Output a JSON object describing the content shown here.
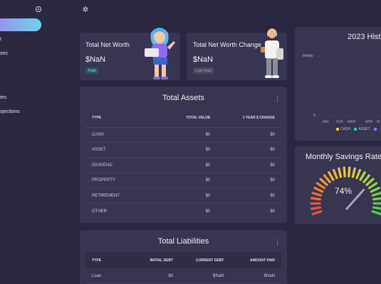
{
  "sidebar": {
    "items": [
      {
        "label": "t"
      },
      {
        "label": "ses"
      },
      {
        "label": "ies"
      },
      {
        "label": "ojections"
      }
    ]
  },
  "net_worth": {
    "title": "Total Net Worth",
    "value": "$NaN",
    "badge": "Total"
  },
  "net_worth_change": {
    "title": "Total Net Worth Change",
    "value": "$NaN",
    "badge": "Last Year"
  },
  "assets": {
    "title": "Total Assets",
    "columns": [
      "TYPE",
      "TOTAL VALUE",
      "1 YEAR $ CHANGE"
    ],
    "rows": [
      {
        "type": "CASH",
        "total": "$0",
        "change": "$0"
      },
      {
        "type": "ASSET",
        "total": "$0",
        "change": "$0"
      },
      {
        "type": "DIVIDEND",
        "total": "$0",
        "change": "$0"
      },
      {
        "type": "PROPERTY",
        "total": "$0",
        "change": "$0"
      },
      {
        "type": "RETIREMENT",
        "total": "$0",
        "change": "$0"
      },
      {
        "type": "OTHER",
        "total": "$0",
        "change": "$0"
      }
    ]
  },
  "liabilities": {
    "title": "Total Liabilities",
    "columns": [
      "TYPE",
      "INITIAL DEBT",
      "CURRENT DEBT",
      "AMOUNT PAID"
    ],
    "rows": [
      {
        "type": "Loan",
        "initial": "$0",
        "current": "$NaN",
        "paid": "$NaN"
      }
    ]
  },
  "history": {
    "title": "2023 Hist",
    "y_label": "Infinity",
    "zero_label": "0",
    "months": [
      "JAN",
      "FEB",
      "MAR",
      "APR",
      "M"
    ],
    "legend": [
      {
        "name": "CASH",
        "color": "#f4d03f"
      },
      {
        "name": "ASSET",
        "color": "#2fd1c6"
      },
      {
        "name": "",
        "color": "#7f7cf0"
      }
    ]
  },
  "savings": {
    "title": "Monthly Savings Rate",
    "value": "74%",
    "rate": 0.74
  },
  "colors": {
    "accent": "#8e7cf0",
    "card": "#383550",
    "background": "#2a2740"
  }
}
